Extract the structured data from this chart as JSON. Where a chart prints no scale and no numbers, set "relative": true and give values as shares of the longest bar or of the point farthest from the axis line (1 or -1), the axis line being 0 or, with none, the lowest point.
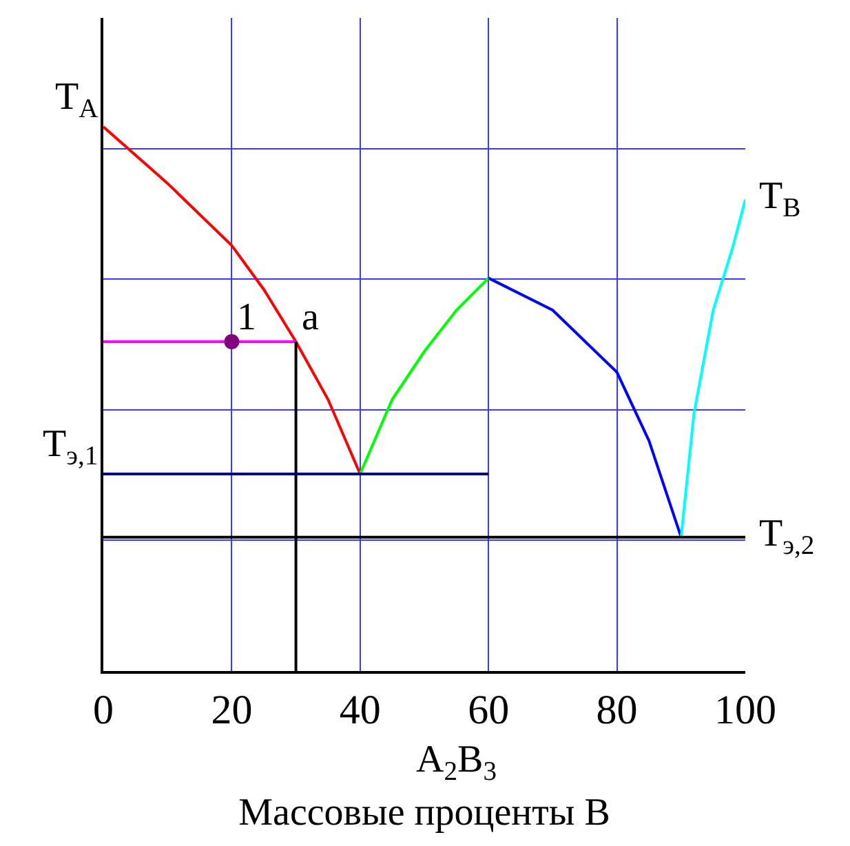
{
  "chart_data": {
    "type": "line",
    "relative": true,
    "xlabel": "Массовые проценты B",
    "xlim": [
      0,
      100
    ],
    "xticks": [
      0,
      20,
      40,
      60,
      80,
      100
    ],
    "grid": true,
    "tick_labels": "x",
    "series": [
      {
        "color": "#ff0000",
        "x": [
          0,
          10,
          20,
          25,
          30,
          35,
          40
        ],
        "values": [
          1.0,
          0.896,
          0.782,
          0.701,
          0.605,
          0.499,
          0.362
        ]
      },
      {
        "color": "#00ff00",
        "x": [
          40,
          45,
          50,
          55,
          60
        ],
        "values": [
          0.362,
          0.499,
          0.587,
          0.663,
          0.722
        ]
      },
      {
        "color": "#0000ff",
        "x": [
          60,
          70,
          80,
          85,
          90
        ],
        "values": [
          0.722,
          0.663,
          0.549,
          0.423,
          0.246
        ]
      },
      {
        "color": "#00ffff",
        "x": [
          90,
          92,
          95,
          98,
          100
        ],
        "values": [
          0.246,
          0.473,
          0.663,
          0.777,
          0.866
        ]
      },
      {
        "color": "#ff00ff",
        "x": [
          0,
          30
        ],
        "values": [
          0.605,
          0.605
        ]
      },
      {
        "color": "#000000",
        "x": [
          30,
          30
        ],
        "values": [
          0,
          0.605
        ]
      },
      {
        "color": "#000080",
        "x": [
          0,
          60
        ],
        "values": [
          0.362,
          0.362
        ]
      },
      {
        "color": "#000000",
        "x": [
          0,
          100
        ],
        "values": [
          0.246,
          0.246
        ]
      },
      {
        "type": "scatter",
        "marker": "circle",
        "color": "#800080",
        "x": [
          20
        ],
        "values": [
          0.605
        ]
      }
    ],
    "annotations": [
      {
        "text": "T$_{A}$",
        "x": 0,
        "y": 1.0
      },
      {
        "text": "T$_{B}$",
        "x": 100,
        "y": 0.866
      },
      {
        "text": "T$_{э,1}$",
        "x": 0,
        "y": 0.362
      },
      {
        "text": "T$_{э,2}$",
        "x": 100,
        "y": 0.246
      },
      {
        "text": "1",
        "x": 20,
        "y": 0.605
      },
      {
        "text": "a",
        "x": 30,
        "y": 0.605
      },
      "A$_{2}$B$_{3}$"
    ]
  }
}
